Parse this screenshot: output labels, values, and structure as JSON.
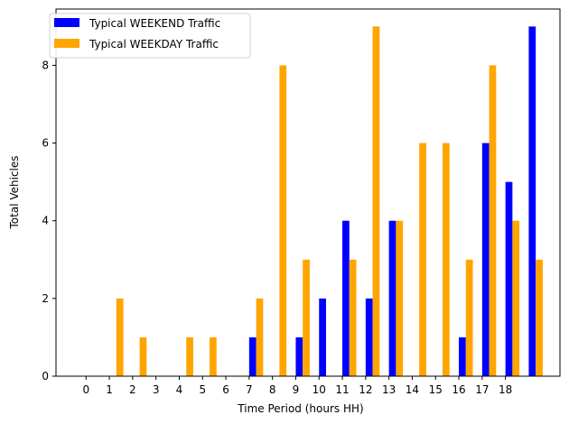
{
  "chart_data": {
    "type": "bar",
    "title": "",
    "xlabel": "Time Period (hours HH)",
    "ylabel": "Total Vehicles",
    "categories": [
      "0",
      "1",
      "2",
      "3",
      "4",
      "5",
      "6",
      "7",
      "8",
      "9",
      "10",
      "11",
      "12",
      "13",
      "14",
      "15",
      "16",
      "17",
      "18"
    ],
    "series": [
      {
        "name": "Typical WEEKEND Traffic",
        "color": "#0000ff",
        "x": [
          7,
          9,
          10,
          11,
          12,
          13,
          16,
          17,
          18,
          19
        ],
        "values": [
          1,
          1,
          2,
          4,
          2,
          4,
          1,
          6,
          5,
          9
        ]
      },
      {
        "name": "Typical WEEKDAY Traffic",
        "color": "#ffa500",
        "x": [
          1,
          2,
          4,
          5,
          7,
          8,
          9,
          11,
          12,
          13,
          14,
          15,
          16,
          17,
          18,
          19
        ],
        "values": [
          2,
          1,
          1,
          1,
          2,
          8,
          3,
          3,
          9,
          4,
          6,
          6,
          3,
          8,
          4,
          3
        ]
      }
    ],
    "ylim": [
      0,
      9.45
    ],
    "yticks": [
      0,
      2,
      4,
      6,
      8
    ],
    "grid": false,
    "legend": "top-left"
  }
}
